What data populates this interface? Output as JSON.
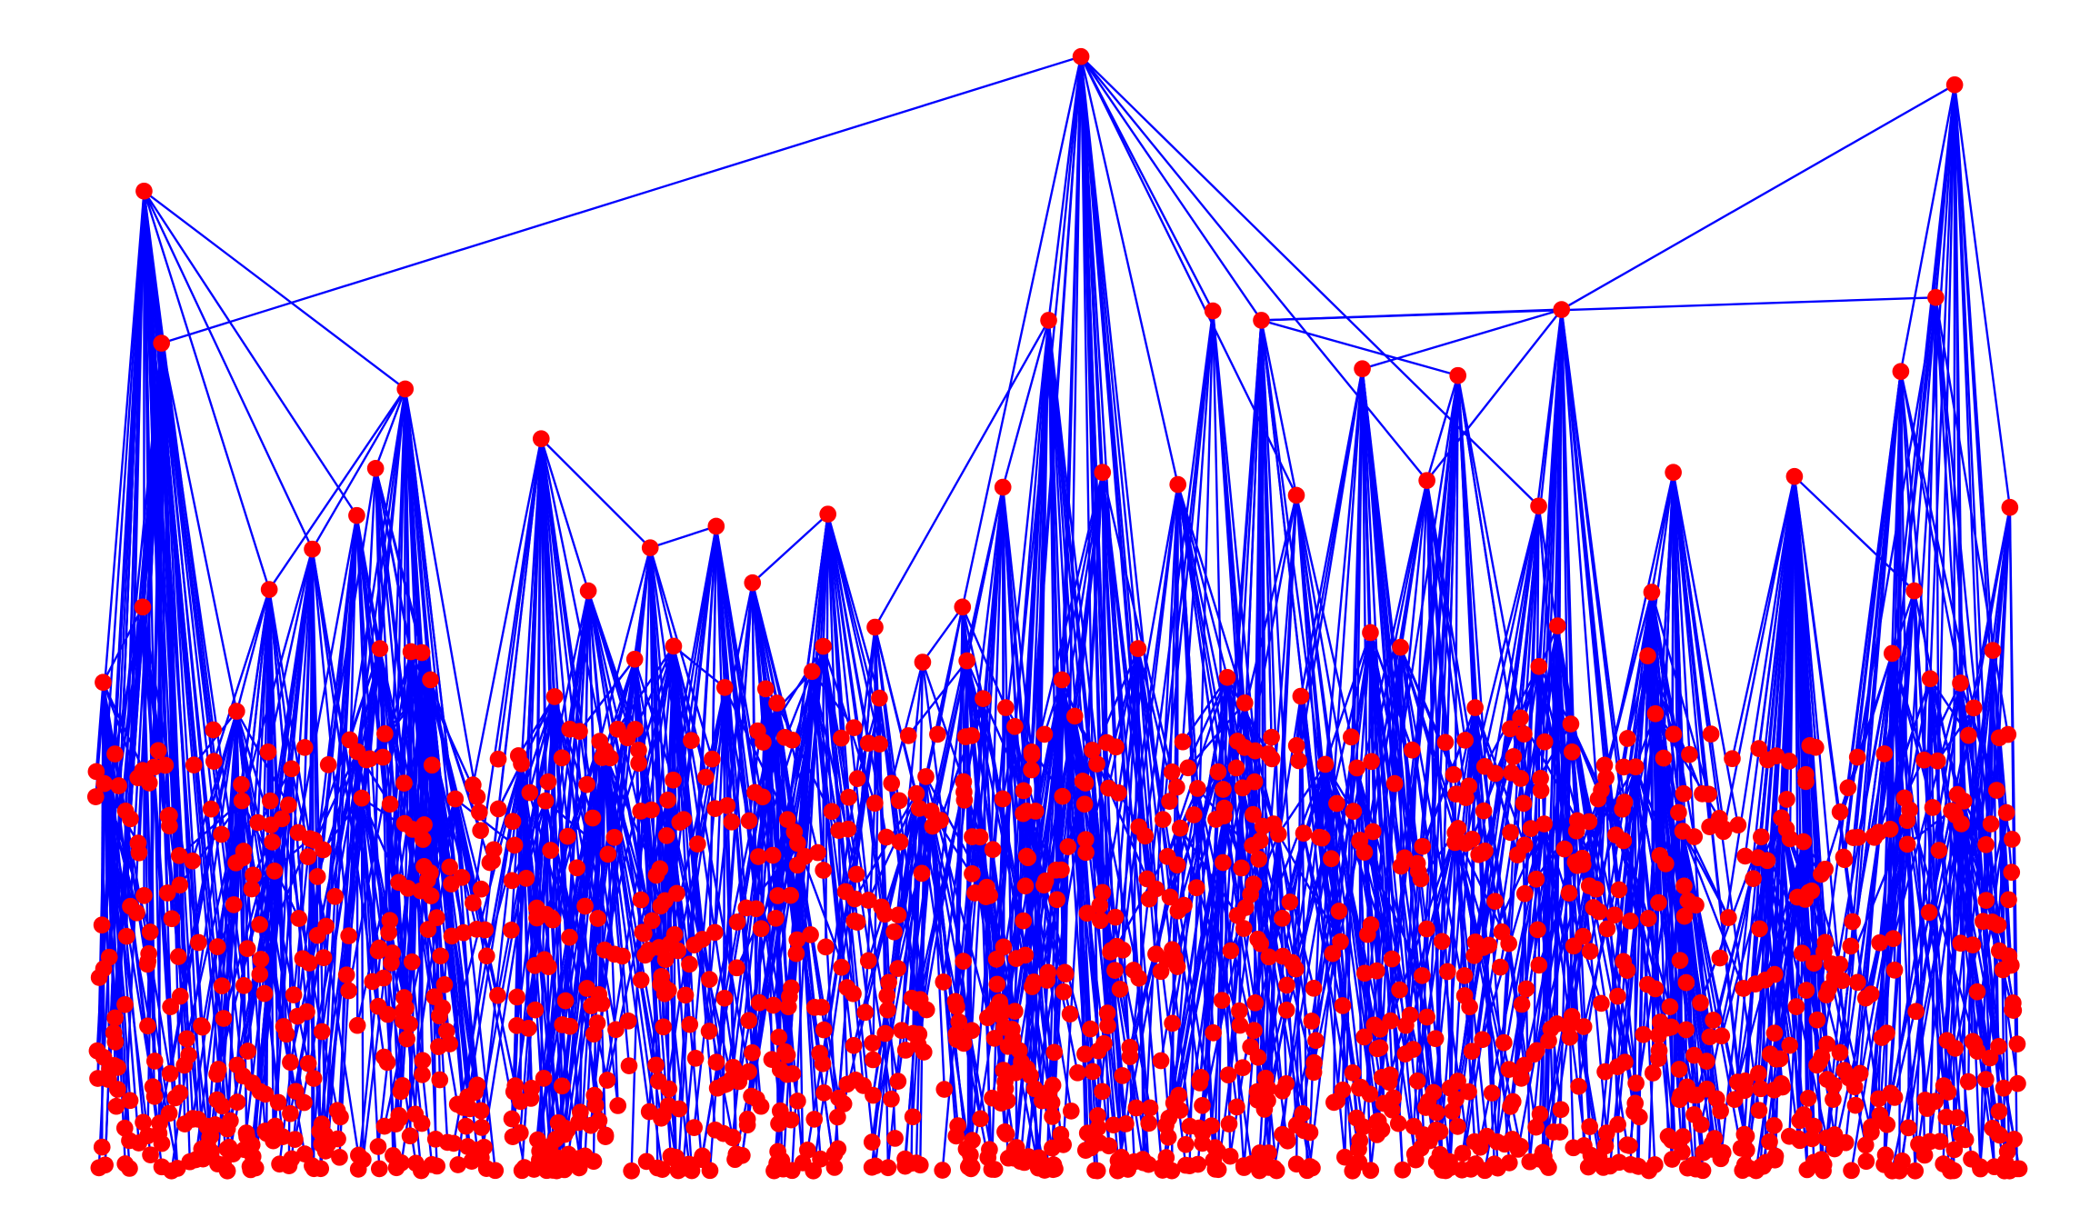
{
  "graph": {
    "node_color": "#ff0000",
    "edge_color": "#0000ff",
    "background": "#ffffff"
  }
}
